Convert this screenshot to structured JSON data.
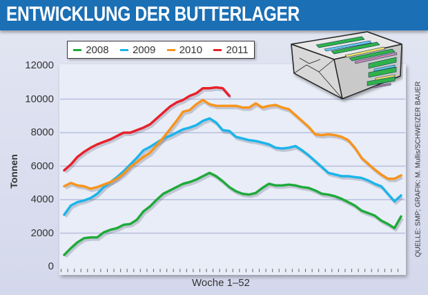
{
  "header": {
    "title": "ENTWICKLUNG DER BUTTERLAGER"
  },
  "source": "QUELLE: SMP; GRAFIK: M. Mullis/SCHWEIZER BAUER",
  "illustration": "butter-package-icon",
  "chart_data": {
    "type": "line",
    "title": "ENTWICKLUNG DER BUTTERLAGER",
    "xlabel": "Woche 1–52",
    "ylabel": "Tonnen",
    "ylim": [
      0,
      12000
    ],
    "xlim": [
      1,
      52
    ],
    "yticks": [
      "0",
      "2000",
      "4000",
      "6000",
      "8000",
      "10000",
      "12000"
    ],
    "ytick_values": [
      0,
      2000,
      4000,
      6000,
      8000,
      10000,
      12000
    ],
    "grid": true,
    "legend_position": "top-left",
    "series": [
      {
        "name": "2008",
        "color": "#1faa3a",
        "values": [
          700,
          1100,
          1450,
          1700,
          1750,
          1750,
          2050,
          2200,
          2300,
          2500,
          2550,
          2800,
          3300,
          3600,
          4000,
          4350,
          4550,
          4750,
          4950,
          5050,
          5200,
          5400,
          5600,
          5400,
          5100,
          4750,
          4500,
          4350,
          4300,
          4400,
          4700,
          4950,
          4850,
          4850,
          4900,
          4850,
          4750,
          4700,
          4550,
          4350,
          4300,
          4200,
          4050,
          3850,
          3650,
          3350,
          3200,
          3050,
          2750,
          2550,
          2300,
          3000
        ]
      },
      {
        "name": "2009",
        "color": "#1bb4ea",
        "values": [
          3100,
          3650,
          3850,
          3950,
          4100,
          4350,
          4750,
          5050,
          5350,
          5700,
          6100,
          6500,
          6950,
          7150,
          7400,
          7650,
          7800,
          8000,
          8200,
          8300,
          8450,
          8700,
          8850,
          8600,
          8150,
          8100,
          7750,
          7650,
          7550,
          7500,
          7400,
          7300,
          7100,
          7050,
          7100,
          7200,
          6950,
          6650,
          6300,
          5950,
          5600,
          5500,
          5400,
          5400,
          5350,
          5300,
          5150,
          4950,
          4800,
          4350,
          3900,
          4250
        ]
      },
      {
        "name": "2010",
        "color": "#f7941d",
        "values": [
          4800,
          5000,
          4850,
          4800,
          4650,
          4750,
          4900,
          5050,
          5250,
          5550,
          5950,
          6250,
          6550,
          6800,
          7250,
          7700,
          8200,
          8700,
          9250,
          9350,
          9700,
          9950,
          9700,
          9600,
          9600,
          9600,
          9600,
          9500,
          9500,
          9750,
          9500,
          9600,
          9650,
          9500,
          9400,
          9050,
          8700,
          8350,
          7900,
          7850,
          7900,
          7850,
          7750,
          7550,
          7100,
          6500,
          6150,
          5800,
          5500,
          5250,
          5250,
          5450
        ]
      },
      {
        "name": "2011",
        "color": "#e8202a",
        "values": [
          5750,
          6100,
          6550,
          6850,
          7100,
          7300,
          7450,
          7600,
          7800,
          8000,
          8000,
          8150,
          8300,
          8500,
          8850,
          9200,
          9550,
          9800,
          9950,
          10200,
          10350,
          10650,
          10650,
          10700,
          10650,
          10200
        ]
      }
    ]
  }
}
